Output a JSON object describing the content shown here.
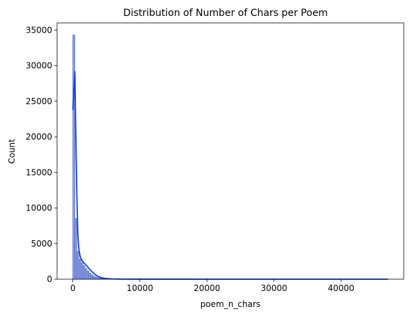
{
  "chart_data": {
    "type": "bar",
    "title": "Distribution of Number of Chars per Poem",
    "xlabel": "poem_n_chars",
    "ylabel": "Count",
    "xlim": [
      -2350,
      49350
    ],
    "ylim": [
      0,
      36000
    ],
    "xticks": [
      0,
      10000,
      20000,
      30000,
      40000
    ],
    "xtick_labels": [
      "0",
      "10000",
      "20000",
      "30000",
      "40000"
    ],
    "yticks": [
      0,
      5000,
      10000,
      15000,
      20000,
      25000,
      30000,
      35000
    ],
    "ytick_labels": [
      "0",
      "5000",
      "10000",
      "15000",
      "20000",
      "25000",
      "30000",
      "35000"
    ],
    "grid": false,
    "bin_width": 300,
    "bins_start": 0,
    "counts": [
      34300,
      8500,
      3900,
      2800,
      2300,
      1900,
      1500,
      1150,
      850,
      600,
      420,
      300,
      210,
      150,
      110,
      80,
      60,
      45,
      35,
      28,
      22,
      18,
      14,
      11,
      9,
      7,
      6,
      5,
      4,
      3
    ],
    "kde": {
      "x": [
        0,
        150,
        300,
        450,
        600,
        750,
        900,
        1100,
        1300,
        1500,
        1800,
        2100,
        2400,
        2800,
        3200,
        3600,
        4000,
        4500,
        5000,
        6000,
        7000,
        8000,
        10000,
        15000,
        20000,
        30000,
        40000,
        47000
      ],
      "y": [
        23800,
        26500,
        29200,
        20000,
        11800,
        6200,
        4200,
        3200,
        2700,
        2450,
        2150,
        1850,
        1500,
        1100,
        750,
        480,
        300,
        160,
        90,
        40,
        20,
        12,
        7,
        4,
        3,
        2,
        1,
        0
      ]
    },
    "bar_color": "#8e9fd8",
    "bar_edge_color": "#3b55c8",
    "kde_color": "#0e3fe8"
  }
}
